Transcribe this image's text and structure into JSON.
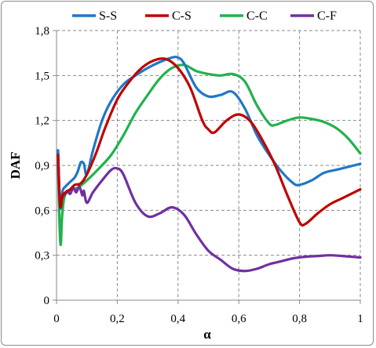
{
  "chart_data": {
    "type": "line",
    "title": "",
    "xlabel": "α",
    "ylabel": "DAF",
    "xlim": [
      0,
      1
    ],
    "ylim": [
      0,
      1.8
    ],
    "x_ticks": [
      0,
      0.2,
      0.4,
      0.6,
      0.8,
      1
    ],
    "x_tick_labels": [
      "0",
      "0,2",
      "0,4",
      "0,6",
      "0,8",
      "1"
    ],
    "y_ticks": [
      0,
      0.3,
      0.6,
      0.9,
      1.2,
      1.5,
      1.8
    ],
    "y_tick_labels": [
      "0",
      "0,3",
      "0,6",
      "0,9",
      "1,2",
      "1,5",
      "1,8"
    ],
    "grid": true,
    "legend_position": "top",
    "series": [
      {
        "name": "S-S",
        "color": "#1f77c8",
        "points": [
          [
            0.005,
            1.0
          ],
          [
            0.012,
            0.62
          ],
          [
            0.02,
            0.73
          ],
          [
            0.03,
            0.76
          ],
          [
            0.045,
            0.79
          ],
          [
            0.06,
            0.82
          ],
          [
            0.07,
            0.86
          ],
          [
            0.08,
            0.92
          ],
          [
            0.09,
            0.91
          ],
          [
            0.1,
            0.84
          ],
          [
            0.12,
            1.0
          ],
          [
            0.15,
            1.2
          ],
          [
            0.18,
            1.33
          ],
          [
            0.22,
            1.44
          ],
          [
            0.26,
            1.5
          ],
          [
            0.3,
            1.55
          ],
          [
            0.34,
            1.59
          ],
          [
            0.38,
            1.62
          ],
          [
            0.4,
            1.62
          ],
          [
            0.42,
            1.58
          ],
          [
            0.46,
            1.42
          ],
          [
            0.5,
            1.36
          ],
          [
            0.54,
            1.37
          ],
          [
            0.58,
            1.39
          ],
          [
            0.62,
            1.28
          ],
          [
            0.66,
            1.1
          ],
          [
            0.7,
            0.97
          ],
          [
            0.74,
            0.86
          ],
          [
            0.78,
            0.78
          ],
          [
            0.8,
            0.77
          ],
          [
            0.84,
            0.8
          ],
          [
            0.88,
            0.85
          ],
          [
            0.92,
            0.87
          ],
          [
            0.96,
            0.89
          ],
          [
            1.0,
            0.91
          ]
        ]
      },
      {
        "name": "C-S",
        "color": "#c00000",
        "points": [
          [
            0.005,
            0.97
          ],
          [
            0.012,
            0.63
          ],
          [
            0.02,
            0.7
          ],
          [
            0.03,
            0.72
          ],
          [
            0.045,
            0.74
          ],
          [
            0.06,
            0.77
          ],
          [
            0.08,
            0.78
          ],
          [
            0.1,
            0.84
          ],
          [
            0.13,
            0.98
          ],
          [
            0.16,
            1.15
          ],
          [
            0.2,
            1.34
          ],
          [
            0.24,
            1.46
          ],
          [
            0.28,
            1.55
          ],
          [
            0.32,
            1.6
          ],
          [
            0.36,
            1.61
          ],
          [
            0.4,
            1.55
          ],
          [
            0.44,
            1.42
          ],
          [
            0.48,
            1.2
          ],
          [
            0.5,
            1.14
          ],
          [
            0.52,
            1.12
          ],
          [
            0.56,
            1.2
          ],
          [
            0.6,
            1.24
          ],
          [
            0.64,
            1.19
          ],
          [
            0.68,
            1.06
          ],
          [
            0.72,
            0.9
          ],
          [
            0.76,
            0.7
          ],
          [
            0.8,
            0.52
          ],
          [
            0.82,
            0.51
          ],
          [
            0.86,
            0.58
          ],
          [
            0.9,
            0.64
          ],
          [
            0.94,
            0.68
          ],
          [
            0.97,
            0.71
          ],
          [
            1.0,
            0.74
          ]
        ]
      },
      {
        "name": "C-C",
        "color": "#21b24b",
        "points": [
          [
            0.005,
            0.9
          ],
          [
            0.01,
            0.5
          ],
          [
            0.014,
            0.37
          ],
          [
            0.018,
            0.55
          ],
          [
            0.025,
            0.68
          ],
          [
            0.035,
            0.72
          ],
          [
            0.05,
            0.74
          ],
          [
            0.07,
            0.75
          ],
          [
            0.1,
            0.8
          ],
          [
            0.14,
            0.88
          ],
          [
            0.18,
            0.97
          ],
          [
            0.22,
            1.1
          ],
          [
            0.26,
            1.25
          ],
          [
            0.3,
            1.37
          ],
          [
            0.34,
            1.48
          ],
          [
            0.38,
            1.55
          ],
          [
            0.42,
            1.57
          ],
          [
            0.46,
            1.53
          ],
          [
            0.5,
            1.51
          ],
          [
            0.54,
            1.5
          ],
          [
            0.58,
            1.51
          ],
          [
            0.62,
            1.46
          ],
          [
            0.66,
            1.3
          ],
          [
            0.7,
            1.18
          ],
          [
            0.72,
            1.17
          ],
          [
            0.76,
            1.2
          ],
          [
            0.8,
            1.22
          ],
          [
            0.84,
            1.21
          ],
          [
            0.88,
            1.19
          ],
          [
            0.92,
            1.15
          ],
          [
            0.96,
            1.08
          ],
          [
            1.0,
            0.98
          ]
        ]
      },
      {
        "name": "C-F",
        "color": "#7030a0",
        "points": [
          [
            0.005,
            1.0
          ],
          [
            0.008,
            0.75
          ],
          [
            0.012,
            0.62
          ],
          [
            0.018,
            0.68
          ],
          [
            0.025,
            0.7
          ],
          [
            0.035,
            0.73
          ],
          [
            0.045,
            0.71
          ],
          [
            0.055,
            0.75
          ],
          [
            0.065,
            0.72
          ],
          [
            0.075,
            0.76
          ],
          [
            0.085,
            0.7
          ],
          [
            0.09,
            0.73
          ],
          [
            0.1,
            0.65
          ],
          [
            0.12,
            0.72
          ],
          [
            0.15,
            0.8
          ],
          [
            0.18,
            0.87
          ],
          [
            0.2,
            0.88
          ],
          [
            0.22,
            0.84
          ],
          [
            0.26,
            0.65
          ],
          [
            0.3,
            0.56
          ],
          [
            0.34,
            0.58
          ],
          [
            0.38,
            0.62
          ],
          [
            0.42,
            0.57
          ],
          [
            0.46,
            0.44
          ],
          [
            0.5,
            0.33
          ],
          [
            0.54,
            0.27
          ],
          [
            0.58,
            0.21
          ],
          [
            0.62,
            0.195
          ],
          [
            0.66,
            0.21
          ],
          [
            0.7,
            0.24
          ],
          [
            0.74,
            0.26
          ],
          [
            0.78,
            0.28
          ],
          [
            0.82,
            0.29
          ],
          [
            0.86,
            0.295
          ],
          [
            0.9,
            0.3
          ],
          [
            0.94,
            0.295
          ],
          [
            0.97,
            0.29
          ],
          [
            1.0,
            0.285
          ]
        ]
      }
    ]
  }
}
